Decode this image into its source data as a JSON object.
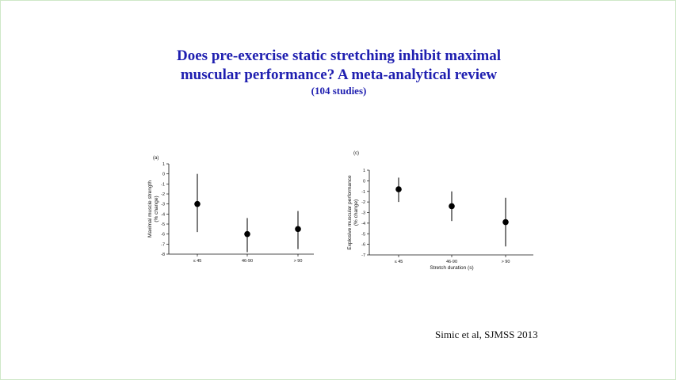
{
  "title_line1": "Does pre-exercise static stretching inhibit maximal",
  "title_line2": "muscular performance? A meta-analytical review",
  "subtitle": "(104 studies)",
  "citation": "Simic et al, SJMSS 2013",
  "chart_data": [
    {
      "type": "scatter",
      "panel_label": "(a)",
      "categories": [
        "≤ 45",
        "46-90",
        "> 90"
      ],
      "ylabel_line1": "Maximal muscle strength",
      "ylabel_line2": "(% change)",
      "xlabel": "",
      "ylim": [
        -8,
        1
      ],
      "yticks": [
        1,
        0,
        -1,
        -2,
        -3,
        -4,
        -5,
        -6,
        -7,
        -8
      ],
      "points": [
        {
          "category": "≤ 45",
          "mean": -3.0,
          "lower": -5.8,
          "upper": 0.0
        },
        {
          "category": "46-90",
          "mean": -6.0,
          "lower": -7.8,
          "upper": -4.4
        },
        {
          "category": "> 90",
          "mean": -5.5,
          "lower": -7.5,
          "upper": -3.7
        }
      ]
    },
    {
      "type": "scatter",
      "panel_label": "(c)",
      "categories": [
        "≤ 45",
        "46-90",
        "> 90"
      ],
      "ylabel_line1": "Explosive muscular performance",
      "ylabel_line2": "(% change)",
      "xlabel": "Stretch duration (s)",
      "ylim": [
        -7,
        1
      ],
      "yticks": [
        1,
        0,
        -1,
        -2,
        -3,
        -4,
        -5,
        -6,
        -7
      ],
      "points": [
        {
          "category": "≤ 45",
          "mean": -0.8,
          "lower": -2.0,
          "upper": 0.3
        },
        {
          "category": "46-90",
          "mean": -2.4,
          "lower": -3.8,
          "upper": -1.0
        },
        {
          "category": "> 90",
          "mean": -3.9,
          "lower": -6.2,
          "upper": -1.6
        }
      ]
    }
  ]
}
